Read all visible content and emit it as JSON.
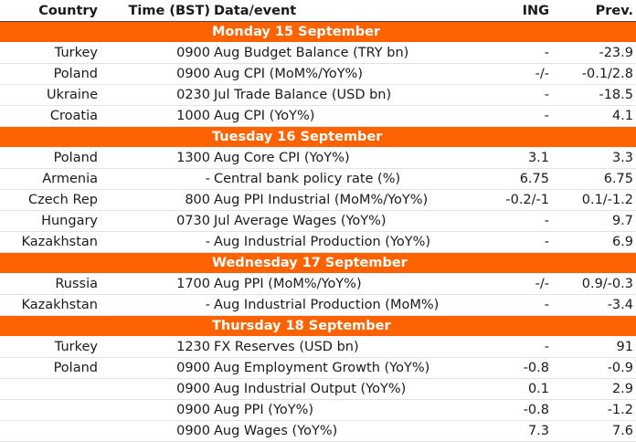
{
  "header": {
    "country": "Country",
    "time": "Time (BST)",
    "event": "Data/event",
    "ing": "ING",
    "prev": "Prev."
  },
  "days": [
    {
      "title": "Monday 15 September",
      "rows": [
        {
          "country": "Turkey",
          "time": "0900",
          "event": "Aug Budget Balance (TRY bn)",
          "ing": "-",
          "prev": "-23.9"
        },
        {
          "country": "Poland",
          "time": "0900",
          "event": "Aug CPI (MoM%/YoY%)",
          "ing": "-/-",
          "prev": "-0.1/2.8"
        },
        {
          "country": "Ukraine",
          "time": "0230",
          "event": "Jul Trade Balance (USD bn)",
          "ing": "-",
          "prev": "-18.5"
        },
        {
          "country": "Croatia",
          "time": "1000",
          "event": "Aug CPI (YoY%)",
          "ing": "-",
          "prev": "4.1"
        }
      ]
    },
    {
      "title": "Tuesday 16 September",
      "rows": [
        {
          "country": "Poland",
          "time": "1300",
          "event": "Aug Core CPI (YoY%)",
          "ing": "3.1",
          "prev": "3.3"
        },
        {
          "country": "Armenia",
          "time": "-",
          "event": "Central bank policy rate (%)",
          "ing": "6.75",
          "prev": "6.75"
        },
        {
          "country": "Czech Rep",
          "time": "800",
          "event": "Aug PPI Industrial (MoM%/YoY%)",
          "ing": "-0.2/-1",
          "prev": "0.1/-1.2"
        },
        {
          "country": "Hungary",
          "time": "0730",
          "event": "Jul Average Wages (YoY%)",
          "ing": "-",
          "prev": "9.7"
        },
        {
          "country": "Kazakhstan",
          "time": "-",
          "event": "Aug Industrial Production (YoY%)",
          "ing": "-",
          "prev": "6.9"
        }
      ]
    },
    {
      "title": "Wednesday 17 September",
      "rows": [
        {
          "country": "Russia",
          "time": "1700",
          "event": "Aug PPI (MoM%/YoY%)",
          "ing": "-/-",
          "prev": "0.9/-0.3"
        },
        {
          "country": "Kazakhstan",
          "time": "-",
          "event": "Aug Industrial Production (MoM%)",
          "ing": "-",
          "prev": "-3.4"
        }
      ]
    },
    {
      "title": "Thursday 18 September",
      "rows": [
        {
          "country": "Turkey",
          "time": "1230",
          "event": "FX Reserves (USD bn)",
          "ing": "-",
          "prev": "91"
        },
        {
          "country": "Poland",
          "time": "0900",
          "event": "Aug Employment Growth (YoY%)",
          "ing": "-0.8",
          "prev": "-0.9"
        },
        {
          "country": "",
          "time": "0900",
          "event": "Aug Industrial Output (YoY%)",
          "ing": "0.1",
          "prev": "2.9"
        },
        {
          "country": "",
          "time": "0900",
          "event": "Aug PPI (YoY%)",
          "ing": "-0.8",
          "prev": "-1.2"
        },
        {
          "country": "",
          "time": "0900",
          "event": "Aug Wages (YoY%)",
          "ing": "7.3",
          "prev": "7.6"
        }
      ]
    }
  ]
}
